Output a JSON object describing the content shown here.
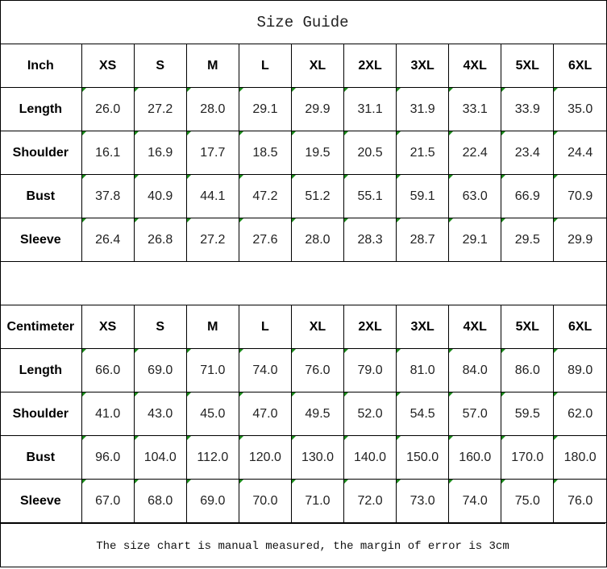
{
  "title": "Size Guide",
  "sizes": [
    "XS",
    "S",
    "M",
    "L",
    "XL",
    "2XL",
    "3XL",
    "4XL",
    "5XL",
    "6XL"
  ],
  "tables": [
    {
      "unit": "Inch",
      "rows": [
        {
          "label": "Length",
          "values": [
            "26.0",
            "27.2",
            "28.0",
            "29.1",
            "29.9",
            "31.1",
            "31.9",
            "33.1",
            "33.9",
            "35.0"
          ]
        },
        {
          "label": "Shoulder",
          "values": [
            "16.1",
            "16.9",
            "17.7",
            "18.5",
            "19.5",
            "20.5",
            "21.5",
            "22.4",
            "23.4",
            "24.4"
          ]
        },
        {
          "label": "Bust",
          "values": [
            "37.8",
            "40.9",
            "44.1",
            "47.2",
            "51.2",
            "55.1",
            "59.1",
            "63.0",
            "66.9",
            "70.9"
          ]
        },
        {
          "label": "Sleeve",
          "values": [
            "26.4",
            "26.8",
            "27.2",
            "27.6",
            "28.0",
            "28.3",
            "28.7",
            "29.1",
            "29.5",
            "29.9"
          ]
        }
      ]
    },
    {
      "unit": "Centimeter",
      "rows": [
        {
          "label": "Length",
          "values": [
            "66.0",
            "69.0",
            "71.0",
            "74.0",
            "76.0",
            "79.0",
            "81.0",
            "84.0",
            "86.0",
            "89.0"
          ]
        },
        {
          "label": "Shoulder",
          "values": [
            "41.0",
            "43.0",
            "45.0",
            "47.0",
            "49.5",
            "52.0",
            "54.5",
            "57.0",
            "59.5",
            "62.0"
          ]
        },
        {
          "label": "Bust",
          "values": [
            "96.0",
            "104.0",
            "112.0",
            "120.0",
            "130.0",
            "140.0",
            "150.0",
            "160.0",
            "170.0",
            "180.0"
          ]
        },
        {
          "label": "Sleeve",
          "values": [
            "67.0",
            "68.0",
            "69.0",
            "70.0",
            "71.0",
            "72.0",
            "73.0",
            "74.0",
            "75.0",
            "76.0"
          ]
        }
      ]
    }
  ],
  "footer": "The size chart is manual measured, the margin of error is 3cm",
  "colors": {
    "comment_marker": "#1a8a1a"
  }
}
